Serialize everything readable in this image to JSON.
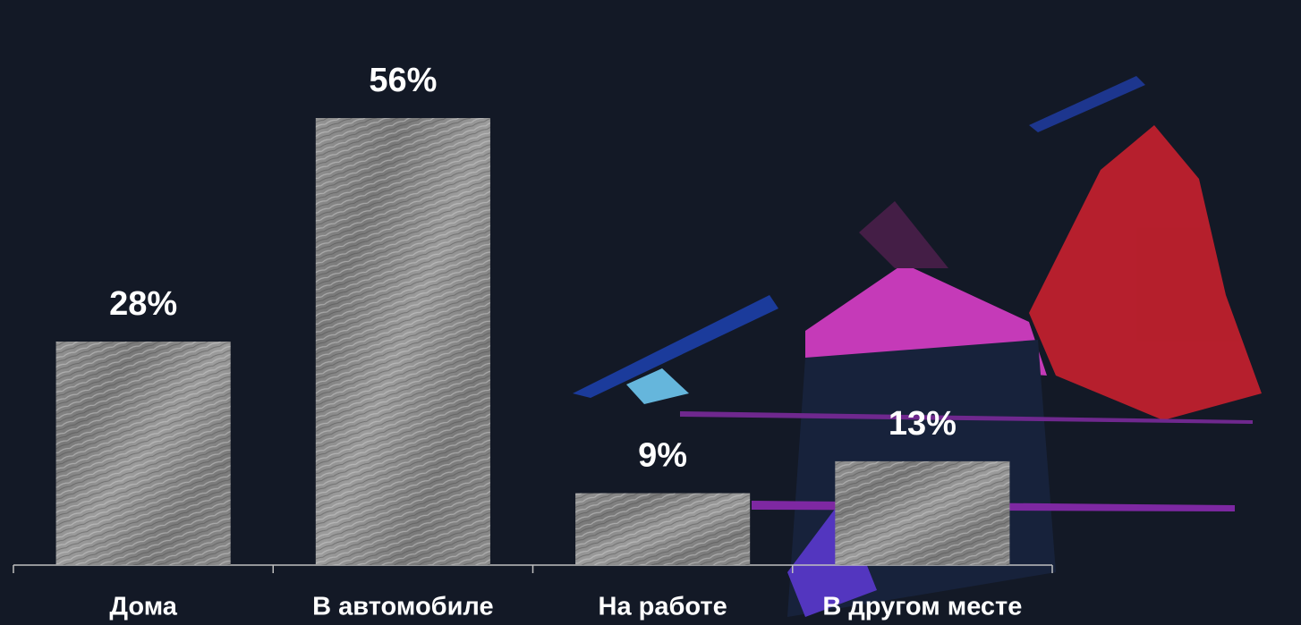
{
  "chart_data": {
    "type": "bar",
    "categories": [
      "Дома",
      "В автомобиле",
      "На работе",
      "В другом месте"
    ],
    "values": [
      28,
      56,
      9,
      13
    ],
    "value_labels": [
      "28%",
      "56%",
      "9%",
      "13%"
    ],
    "color": "#8a8a8a"
  }
}
